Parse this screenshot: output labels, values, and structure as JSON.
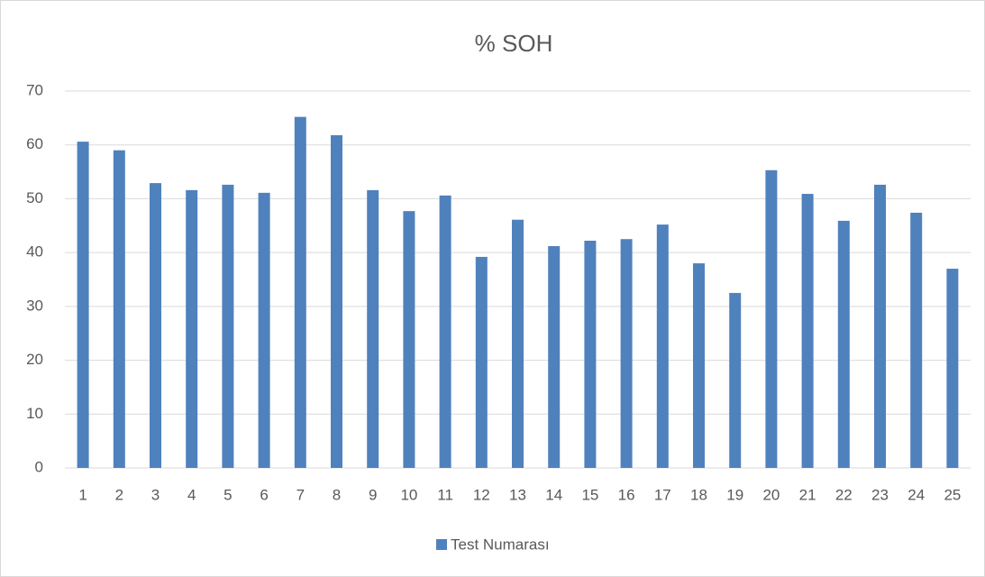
{
  "chart_data": {
    "type": "bar",
    "title": "% SOH",
    "categories": [
      "1",
      "2",
      "3",
      "4",
      "5",
      "6",
      "7",
      "8",
      "9",
      "10",
      "11",
      "12",
      "13",
      "14",
      "15",
      "16",
      "17",
      "18",
      "19",
      "20",
      "21",
      "22",
      "23",
      "24",
      "25"
    ],
    "series": [
      {
        "name": "Test Numarası",
        "color": "#4f81bd",
        "values": [
          60.6,
          59.0,
          52.9,
          51.6,
          52.6,
          51.1,
          65.2,
          61.8,
          51.6,
          47.7,
          50.6,
          39.2,
          46.1,
          41.2,
          42.2,
          42.5,
          45.2,
          38.0,
          32.5,
          55.3,
          50.9,
          45.9,
          52.6,
          47.4,
          37.0
        ]
      }
    ],
    "ylim": [
      0,
      70
    ],
    "yticks": [
      0,
      10,
      20,
      30,
      40,
      50,
      60,
      70
    ],
    "grid": true,
    "legend": "bottom"
  }
}
